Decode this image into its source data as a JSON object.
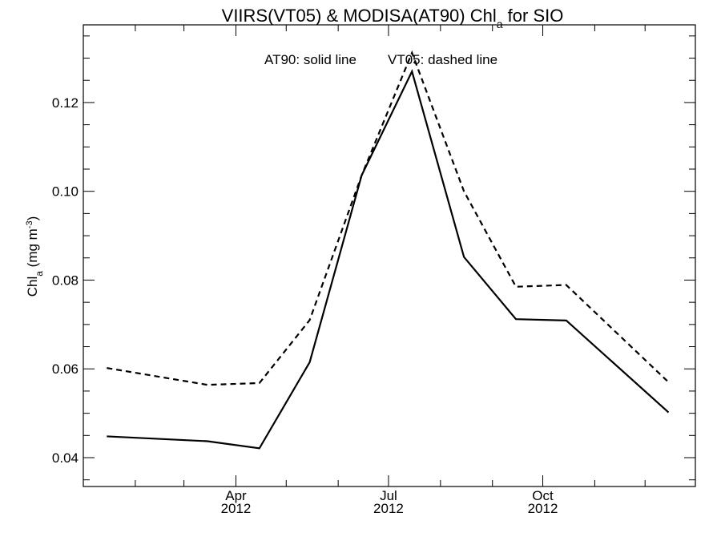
{
  "chart_data": {
    "type": "line",
    "title": {
      "prefix": "VIIRS(VT05) & MODISA(AT90)  Chl",
      "subscript": "a",
      "suffix": " for SIO"
    },
    "annotation": {
      "solid": "AT90: solid line",
      "dashed": "VT05: dashed line"
    },
    "ylabel": {
      "prefix": "Chl",
      "subscript": "a",
      "middle": " (mg m",
      "superscript": "-3",
      "suffix": ")"
    },
    "xlabel": "",
    "x_dates": [
      "2012-01-15",
      "2012-02-15",
      "2012-03-15",
      "2012-04-15",
      "2012-05-15",
      "2012-06-15",
      "2012-07-15",
      "2012-08-15",
      "2012-09-15",
      "2012-10-15",
      "2012-11-15",
      "2012-12-15"
    ],
    "xlim": [
      "2012-01-01",
      "2012-12-31"
    ],
    "ylim": [
      0.0335,
      0.1375
    ],
    "yticks": [
      {
        "value": 0.04,
        "label": "0.04"
      },
      {
        "value": 0.06,
        "label": "0.06"
      },
      {
        "value": 0.08,
        "label": "0.08"
      },
      {
        "value": 0.1,
        "label": "0.10"
      },
      {
        "value": 0.12,
        "label": "0.12"
      }
    ],
    "y_minor_step": 0.005,
    "xticks": [
      {
        "date": "2012-04-01",
        "month": "Apr",
        "year": "2012"
      },
      {
        "date": "2012-07-01",
        "month": "Jul",
        "year": "2012"
      },
      {
        "date": "2012-10-01",
        "month": "Oct",
        "year": "2012"
      }
    ],
    "x_minor_dates": [
      "2012-02-01",
      "2012-03-01",
      "2012-05-01",
      "2012-06-01",
      "2012-08-01",
      "2012-09-01",
      "2012-11-01",
      "2012-12-01"
    ],
    "series": [
      {
        "key": "AT90",
        "style": "solid",
        "color": "#000000",
        "values": [
          0.0448,
          0.0437,
          0.0421,
          0.0615,
          0.1036,
          0.127,
          0.0852,
          0.0712,
          0.0709,
          0.0502
        ]
      },
      {
        "key": "VT05",
        "style": "dashed",
        "color": "#000000",
        "values": [
          0.0602,
          0.0564,
          0.0568,
          0.071,
          0.1036,
          0.1312,
          0.1,
          0.0785,
          0.0789,
          0.057
        ]
      }
    ],
    "x_indices": [
      0,
      2,
      3,
      4,
      5,
      6,
      7,
      8,
      9,
      11
    ],
    "grid": false,
    "legend": "top-center"
  }
}
